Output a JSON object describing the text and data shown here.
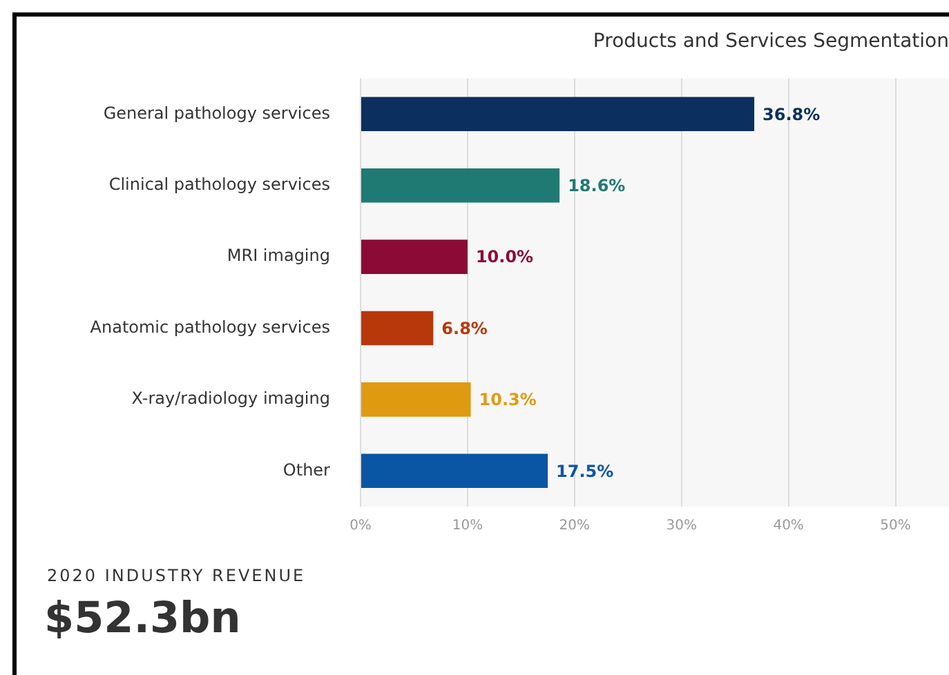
{
  "chart_data": {
    "type": "bar",
    "orientation": "horizontal",
    "title": "Products and Services Segmentation",
    "categories": [
      "General pathology services",
      "Clinical pathology services",
      "MRI imaging",
      "Anatomic pathology services",
      "X-ray/radiology imaging",
      "Other"
    ],
    "values": [
      36.8,
      18.6,
      10.0,
      6.8,
      10.3,
      17.5
    ],
    "colors": [
      "#0b2f5e",
      "#1f7a74",
      "#8c0a36",
      "#b8380c",
      "#e09a12",
      "#0b56a4"
    ],
    "value_labels": [
      "36.8%",
      "18.6%",
      "10.0%",
      "6.8%",
      "10.3%",
      "17.5%"
    ],
    "xlim": [
      0,
      55
    ],
    "xticks": [
      {
        "value": 0,
        "label": "0%"
      },
      {
        "value": 10,
        "label": "10%"
      },
      {
        "value": 20,
        "label": "20%"
      },
      {
        "value": 30,
        "label": "30%"
      },
      {
        "value": 40,
        "label": "40%"
      },
      {
        "value": 50,
        "label": "50%"
      }
    ],
    "grid": "x",
    "legend": false,
    "annotations": [
      "2020 INDUSTRY REVENUE",
      "$52.3bn"
    ]
  }
}
